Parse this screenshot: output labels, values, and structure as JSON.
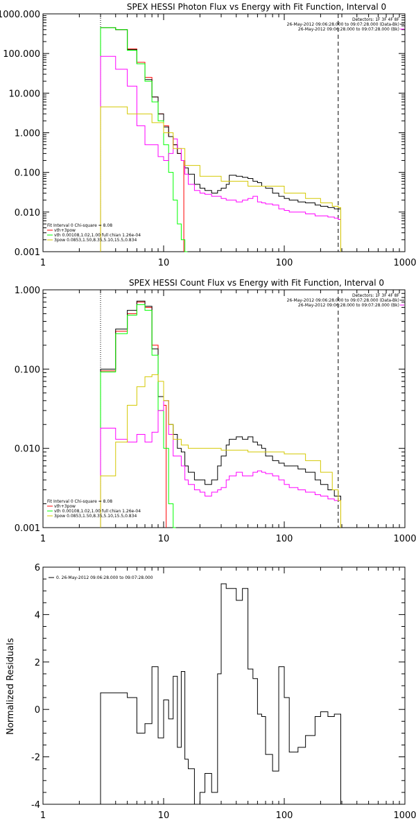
{
  "chart_data": [
    {
      "type": "line",
      "title": "SPEX HESSI Photon Flux vs Energy with Fit Function, Interval 0",
      "xlabel": "",
      "ylabel": "",
      "x_scale": "log",
      "y_scale": "log",
      "xlim": [
        1,
        1000
      ],
      "ylim": [
        0.001,
        1000
      ],
      "x_ticks": [
        "1",
        "10",
        "100",
        "1000"
      ],
      "y_ticks": [
        "0.001",
        "0.010",
        "0.100",
        "1.000",
        "10.000",
        "100.000",
        "1000.000"
      ],
      "energy_bounds_keV": [
        3,
        280
      ],
      "legend_top_right": [
        "Detectors: 1F 3F 4F 8F",
        "26-May-2012 09:06:28.000 to 09:07:28.000 (Data-Bk)",
        "26-May-2012 09:06:28.000 to 09:07:28.000 (Bk)"
      ],
      "legend_bottom_left": [
        "Fit Interval 0   Chi-square = 8.08",
        "vth+3pow",
        "vth 0.00108,1.02,1.00  full chian 1.26e-04",
        "3pow 0.0853,1.50,8.35,5.10,15.5,0.834"
      ],
      "series": [
        {
          "color": "#ff0000",
          "x": [
            3,
            4,
            5,
            6,
            7,
            8,
            9,
            10,
            11,
            12,
            13,
            14
          ],
          "values": [
            450,
            400,
            130,
            60,
            25,
            8,
            3,
            1.5,
            0.8,
            0.5,
            0.3,
            0.2
          ]
        },
        {
          "color": "#000000",
          "x": [
            3,
            4,
            5,
            6,
            7,
            8,
            9,
            10,
            11,
            12,
            13,
            14,
            15,
            16,
            18,
            20,
            22,
            25,
            28,
            30,
            33,
            35,
            40,
            45,
            50,
            55,
            60,
            65,
            70,
            80,
            90,
            100,
            110,
            130,
            150,
            180,
            200,
            230,
            260,
            280
          ],
          "values": [
            450,
            400,
            125,
            55,
            22,
            8,
            3,
            1.4,
            0.8,
            0.5,
            0.3,
            0.2,
            0.13,
            0.09,
            0.05,
            0.04,
            0.035,
            0.03,
            0.035,
            0.04,
            0.05,
            0.085,
            0.08,
            0.075,
            0.07,
            0.06,
            0.055,
            0.045,
            0.04,
            0.03,
            0.025,
            0.022,
            0.02,
            0.018,
            0.017,
            0.015,
            0.014,
            0.013,
            0.012,
            0.012
          ]
        },
        {
          "color": "#00ff00",
          "x": [
            3,
            4,
            5,
            6,
            7,
            8,
            9,
            10,
            11,
            12,
            13,
            14,
            15
          ],
          "values": [
            450,
            400,
            120,
            55,
            20,
            6,
            2,
            0.5,
            0.1,
            0.02,
            0.005,
            0.002,
            0.001
          ]
        },
        {
          "color": "#ff00ff",
          "x": [
            3,
            4,
            5,
            6,
            7,
            8,
            9,
            10,
            11,
            12,
            13,
            14,
            15,
            16,
            18,
            20,
            22,
            25,
            28,
            30,
            33,
            35,
            40,
            45,
            50,
            55,
            60,
            65,
            70,
            80,
            90,
            100,
            110,
            130,
            150,
            180,
            200,
            230,
            260,
            280
          ],
          "values": [
            85,
            40,
            15,
            1.5,
            0.5,
            0.5,
            0.25,
            0.2,
            0.3,
            0.7,
            0.4,
            0.2,
            0.09,
            0.05,
            0.035,
            0.03,
            0.028,
            0.025,
            0.025,
            0.022,
            0.02,
            0.02,
            0.018,
            0.02,
            0.022,
            0.025,
            0.018,
            0.017,
            0.016,
            0.015,
            0.012,
            0.011,
            0.01,
            0.01,
            0.009,
            0.008,
            0.008,
            0.0075,
            0.007,
            0.0065
          ]
        },
        {
          "color": "#d4c800",
          "x": [
            3,
            5,
            8,
            10,
            12,
            15,
            20,
            30,
            50,
            100,
            150,
            200,
            250,
            280
          ],
          "values": [
            4.5,
            3,
            1.8,
            1,
            0.4,
            0.15,
            0.08,
            0.06,
            0.045,
            0.03,
            0.022,
            0.017,
            0.014,
            0.013
          ]
        }
      ]
    },
    {
      "type": "line",
      "title": "SPEX HESSI Count Flux vs Energy with Fit Function, Interval 0",
      "xlabel": "",
      "ylabel": "",
      "x_scale": "log",
      "y_scale": "log",
      "xlim": [
        1,
        1000
      ],
      "ylim": [
        0.001,
        1
      ],
      "x_ticks": [
        "1",
        "10",
        "100",
        "1000"
      ],
      "y_ticks": [
        "0.001",
        "0.010",
        "0.100",
        "1.000"
      ],
      "energy_bounds_keV": [
        3,
        280
      ],
      "legend_top_right": [
        "Detectors: 1F 3F 4F 8F",
        "26-May-2012 09:06:28.000 to 09:07:28.000 (Data-Bk)",
        "26-May-2012 09:06:28.000 to 09:07:28.000 (Bk)"
      ],
      "legend_bottom_left": [
        "Fit Interval 0   Chi-square = 8.08",
        "vth+3pow",
        "vth 0.00108,1.02,1.00  full chian 1.26e-04",
        "3pow 0.0853,1.50,8.35,5.10,15.5,0.834"
      ],
      "series": [
        {
          "color": "#ff0000",
          "x": [
            3,
            4,
            5,
            6,
            7,
            8,
            9,
            10
          ],
          "values": [
            0.095,
            0.3,
            0.5,
            0.7,
            0.6,
            0.2,
            0.045,
            0.035
          ]
        },
        {
          "color": "#000000",
          "x": [
            3,
            4,
            5,
            6,
            7,
            8,
            9,
            10,
            11,
            12,
            13,
            14,
            15,
            16,
            18,
            20,
            22,
            25,
            28,
            30,
            33,
            35,
            40,
            45,
            50,
            55,
            60,
            65,
            70,
            80,
            90,
            100,
            110,
            130,
            150,
            180,
            200,
            230,
            260,
            280
          ],
          "values": [
            0.1,
            0.32,
            0.55,
            0.72,
            0.62,
            0.18,
            0.045,
            0.04,
            0.02,
            0.015,
            0.01,
            0.009,
            0.006,
            0.005,
            0.004,
            0.004,
            0.0035,
            0.004,
            0.006,
            0.008,
            0.011,
            0.013,
            0.014,
            0.013,
            0.014,
            0.012,
            0.011,
            0.01,
            0.008,
            0.007,
            0.0065,
            0.006,
            0.006,
            0.0055,
            0.005,
            0.004,
            0.0035,
            0.003,
            0.0025,
            0.0025
          ]
        },
        {
          "color": "#00ff00",
          "x": [
            3,
            4,
            5,
            6,
            7,
            8,
            9,
            10,
            11,
            12
          ],
          "values": [
            0.092,
            0.28,
            0.48,
            0.65,
            0.55,
            0.15,
            0.03,
            0.01,
            0.002,
            0.001
          ]
        },
        {
          "color": "#ff00ff",
          "x": [
            3,
            4,
            5,
            6,
            7,
            8,
            9,
            10,
            11,
            12,
            13,
            14,
            15,
            16,
            18,
            20,
            22,
            25,
            28,
            30,
            33,
            35,
            40,
            45,
            50,
            55,
            60,
            65,
            70,
            80,
            90,
            100,
            110,
            130,
            150,
            180,
            200,
            230,
            260,
            280
          ],
          "values": [
            0.018,
            0.013,
            0.012,
            0.015,
            0.012,
            0.016,
            0.03,
            0.04,
            0.015,
            0.008,
            0.008,
            0.006,
            0.004,
            0.0035,
            0.003,
            0.0028,
            0.0025,
            0.0028,
            0.003,
            0.0032,
            0.004,
            0.0045,
            0.005,
            0.0045,
            0.0045,
            0.005,
            0.0052,
            0.005,
            0.0048,
            0.0045,
            0.004,
            0.0035,
            0.0032,
            0.003,
            0.0028,
            0.0026,
            0.0025,
            0.0023,
            0.0022,
            0.0022
          ]
        },
        {
          "color": "#d4c800",
          "x": [
            3,
            4,
            5,
            6,
            7,
            8,
            9,
            10,
            11,
            12,
            14,
            16,
            20,
            30,
            50,
            100,
            150,
            200,
            250,
            280
          ],
          "values": [
            0.0045,
            0.012,
            0.035,
            0.06,
            0.08,
            0.085,
            0.07,
            0.04,
            0.02,
            0.013,
            0.011,
            0.01,
            0.01,
            0.0095,
            0.009,
            0.0085,
            0.007,
            0.005,
            0.003,
            0.0022
          ]
        }
      ]
    },
    {
      "type": "line",
      "title": "",
      "xlabel": "",
      "ylabel": "Normalized Residuals",
      "x_scale": "log",
      "y_scale": "linear",
      "xlim": [
        1,
        1000
      ],
      "ylim": [
        -4,
        6
      ],
      "x_ticks": [
        "1",
        "10",
        "100",
        "1000"
      ],
      "y_ticks": [
        "-4",
        "-2",
        "0",
        "2",
        "4",
        "6"
      ],
      "legend": [
        "0. 26-May-2012 09:06:28.000 to 09:07:28.000"
      ],
      "series": [
        {
          "color": "#000000",
          "x": [
            3,
            4,
            5,
            6,
            7,
            8,
            9,
            10,
            11,
            12,
            13,
            14,
            15,
            16,
            18,
            20,
            22,
            25,
            28,
            30,
            33,
            35,
            40,
            45,
            50,
            55,
            60,
            65,
            70,
            80,
            90,
            100,
            110,
            130,
            150,
            180,
            200,
            230,
            260,
            280
          ],
          "values": [
            0.7,
            0.7,
            0.5,
            -1,
            -0.6,
            1.8,
            -1.2,
            0.4,
            -0.4,
            1.4,
            -1.6,
            1.6,
            -2.1,
            -2.5,
            -4,
            -3.5,
            -2.7,
            -3.5,
            1.5,
            5.3,
            5.1,
            5.1,
            4.6,
            5.1,
            1.7,
            1.3,
            -0.2,
            -0.3,
            -1.9,
            -2.6,
            1.8,
            0.5,
            -1.8,
            -1.6,
            -1.1,
            -0.3,
            -0.1,
            -0.3,
            -0.2,
            -0.2
          ]
        }
      ]
    }
  ]
}
